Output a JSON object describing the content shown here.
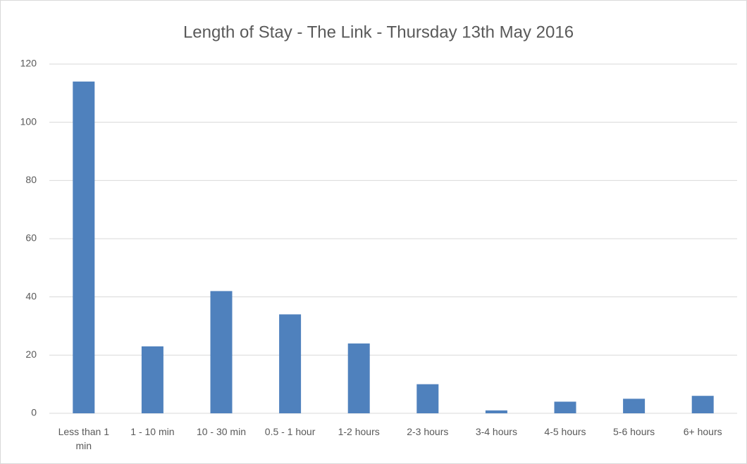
{
  "chart_data": {
    "type": "bar",
    "title": "Length of Stay - The Link - Thursday 13th May 2016",
    "categories": [
      "Less than 1 min",
      "1 - 10 min",
      "10 - 30 min",
      "0.5 - 1 hour",
      "1-2 hours",
      "2-3 hours",
      "3-4 hours",
      "4-5 hours",
      "5-6 hours",
      "6+ hours"
    ],
    "values": [
      114,
      23,
      42,
      34,
      24,
      10,
      1,
      4,
      5,
      6
    ],
    "color": "#4f81bd",
    "ylim": [
      0,
      120
    ],
    "yticks": [
      0,
      20,
      40,
      60,
      80,
      100,
      120
    ],
    "grid": true
  }
}
